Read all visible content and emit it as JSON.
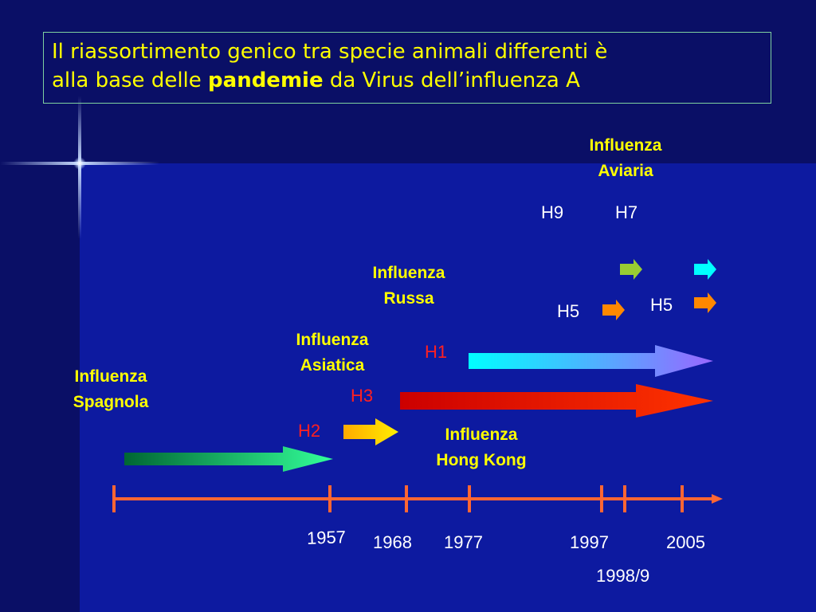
{
  "title": {
    "line1": "Il riassortimento genico tra specie animali differenti è",
    "line2_pre": "alla base delle ",
    "line2_bold": "pandemie",
    "line2_post": " da Virus dell’influenza A"
  },
  "labels": {
    "spagnola_1": "Influenza",
    "spagnola_2": "Spagnola",
    "asiatica_1": "Influenza",
    "asiatica_2": "Asiatica",
    "russa_1": "Influenza",
    "russa_2": "Russa",
    "hongkong_1": "Influenza",
    "hongkong_2": "Hong Kong",
    "aviaria_1": "Influenza",
    "aviaria_2": "Aviaria"
  },
  "subtypes": {
    "h1": "H1",
    "h2": "H2",
    "h3": "H3",
    "h5_a": "H5",
    "h5_b": "H5",
    "h7": "H7",
    "h9": "H9"
  },
  "years": {
    "y1957": "1957",
    "y1968": "1968",
    "y1977": "1977",
    "y1997": "1997",
    "y1998": "1998/9",
    "y2005": "2005"
  },
  "colors": {
    "title_text": "#ffff00",
    "timeline": "#ff6633",
    "h1_arrow_start": "#00ffff",
    "h1_arrow_end": "#9966ff",
    "h3_arrow_start": "#cc0000",
    "h3_arrow_end": "#ff3300",
    "h2_arrow_start": "#ffaa00",
    "h2_arrow_end": "#ffee00",
    "spagnola_arrow_start": "#006633",
    "spagnola_arrow_end": "#33ff99",
    "h7_arrow": "#99cc33",
    "h9_arrow": "#00ffff",
    "h5_arrow": "#ff8800"
  }
}
